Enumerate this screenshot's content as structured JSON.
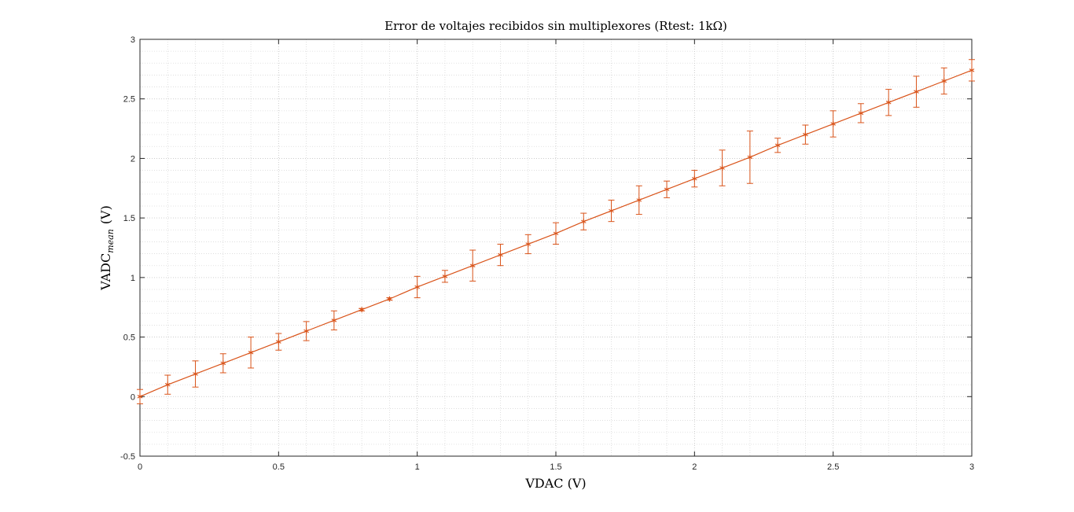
{
  "chart_data": {
    "type": "line",
    "title": "Error de voltajes recibidos sin multiplexores (Rtest: 1kΩ)",
    "xlabel": "VDAC (V)",
    "ylabel_main": "VADC",
    "ylabel_sub": "mean",
    "ylabel_unit": "(V)",
    "xlim": [
      0,
      3
    ],
    "ylim": [
      -0.5,
      3
    ],
    "xticks": [
      0,
      0.5,
      1,
      1.5,
      2,
      2.5,
      3
    ],
    "xtick_labels": [
      "0",
      "0.5",
      "1",
      "1.5",
      "2",
      "2.5",
      "3"
    ],
    "yticks": [
      -0.5,
      0,
      0.5,
      1,
      1.5,
      2,
      2.5,
      3
    ],
    "ytick_labels": [
      "-0.5",
      "0",
      "0.5",
      "1",
      "1.5",
      "2",
      "2.5",
      "3"
    ],
    "grid": true,
    "minor_grid": true,
    "series_color": "#d95319",
    "series": [
      {
        "x": [
          0,
          0.1,
          0.2,
          0.3,
          0.4,
          0.5,
          0.6,
          0.7,
          0.8,
          0.9,
          1.0,
          1.1,
          1.2,
          1.3,
          1.4,
          1.5,
          1.6,
          1.7,
          1.8,
          1.9,
          2.0,
          2.1,
          2.2,
          2.3,
          2.4,
          2.5,
          2.6,
          2.7,
          2.8,
          2.9,
          3.0
        ],
        "y": [
          0.0,
          0.1,
          0.19,
          0.28,
          0.37,
          0.46,
          0.55,
          0.64,
          0.73,
          0.82,
          0.92,
          1.01,
          1.1,
          1.19,
          1.28,
          1.37,
          1.47,
          1.56,
          1.65,
          1.74,
          1.83,
          1.92,
          2.01,
          2.11,
          2.2,
          2.29,
          2.38,
          2.47,
          2.56,
          2.65,
          2.74
        ],
        "error": [
          0.06,
          0.08,
          0.11,
          0.08,
          0.13,
          0.07,
          0.08,
          0.08,
          0.01,
          0.01,
          0.09,
          0.05,
          0.13,
          0.09,
          0.08,
          0.09,
          0.07,
          0.09,
          0.12,
          0.07,
          0.07,
          0.15,
          0.22,
          0.06,
          0.08,
          0.11,
          0.08,
          0.11,
          0.13,
          0.11,
          0.09
        ]
      }
    ]
  }
}
